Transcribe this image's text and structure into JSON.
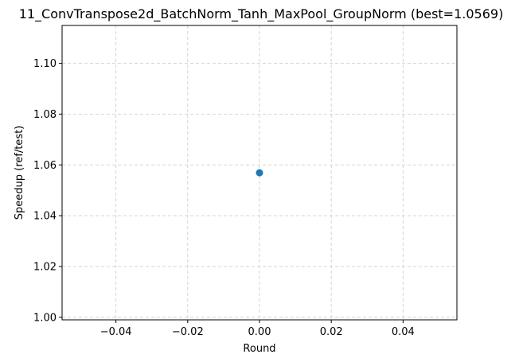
{
  "chart_data": {
    "type": "scatter",
    "title": "11_ConvTranspose2d_BatchNorm_Tanh_MaxPool_GroupNorm (best=1.0569)",
    "xlabel": "Round",
    "ylabel": "Speedup (ref/test)",
    "xlim": [
      -0.055,
      0.055
    ],
    "ylim": [
      0.999,
      1.1149
    ],
    "x_ticks": [
      -0.04,
      -0.02,
      0.0,
      0.02,
      0.04
    ],
    "x_tick_labels": [
      "−0.04",
      "−0.02",
      "0.00",
      "0.02",
      "0.04"
    ],
    "y_ticks": [
      1.0,
      1.02,
      1.04,
      1.06,
      1.08,
      1.1
    ],
    "y_tick_labels": [
      "1.00",
      "1.02",
      "1.04",
      "1.06",
      "1.08",
      "1.10"
    ],
    "grid": true,
    "series": [
      {
        "color": "#1f77b4",
        "points": [
          {
            "x": 0,
            "y": 1.0569
          }
        ]
      }
    ]
  }
}
